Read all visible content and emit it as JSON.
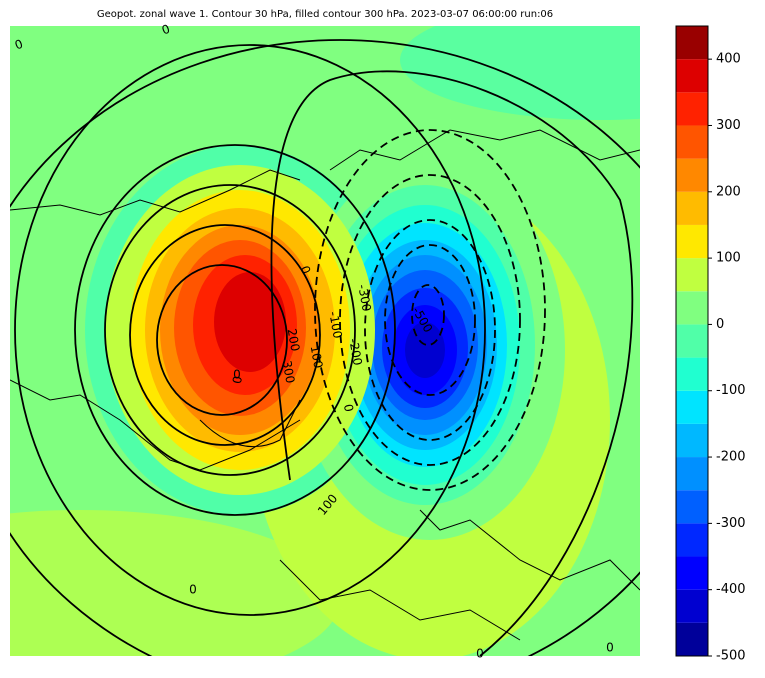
{
  "chart_data": {
    "type": "contour-map",
    "title": "Geopot. zonal wave 1. Contour 30 hPa, filled contour 300 hPa. 2023-03-07 06:00:00 run:06",
    "colorbar": {
      "bins": [
        -500,
        -450,
        -400,
        -350,
        -300,
        -250,
        -200,
        -150,
        -100,
        -50,
        0,
        50,
        100,
        150,
        200,
        250,
        300,
        350,
        400,
        450
      ],
      "colors": [
        "#00009a",
        "#0000d0",
        "#0000ff",
        "#0028ff",
        "#0060ff",
        "#0090ff",
        "#00b8ff",
        "#00e4ff",
        "#20ffd0",
        "#50ffa8",
        "#80ff80",
        "#c0ff40",
        "#ffe800",
        "#ffbb00",
        "#ff8800",
        "#ff5500",
        "#ff2200",
        "#dd0000",
        "#990000"
      ],
      "ylim": [
        -500,
        450
      ],
      "yticks": [
        -500,
        -400,
        -300,
        -200,
        -100,
        0,
        100,
        200,
        300,
        400
      ]
    },
    "contour_labels": [
      "0",
      "0",
      "0",
      "0",
      "0",
      "100",
      "200",
      "300",
      "100",
      "0",
      "-100",
      "-200",
      "-300",
      "-500",
      "0",
      "0",
      "0"
    ]
  }
}
